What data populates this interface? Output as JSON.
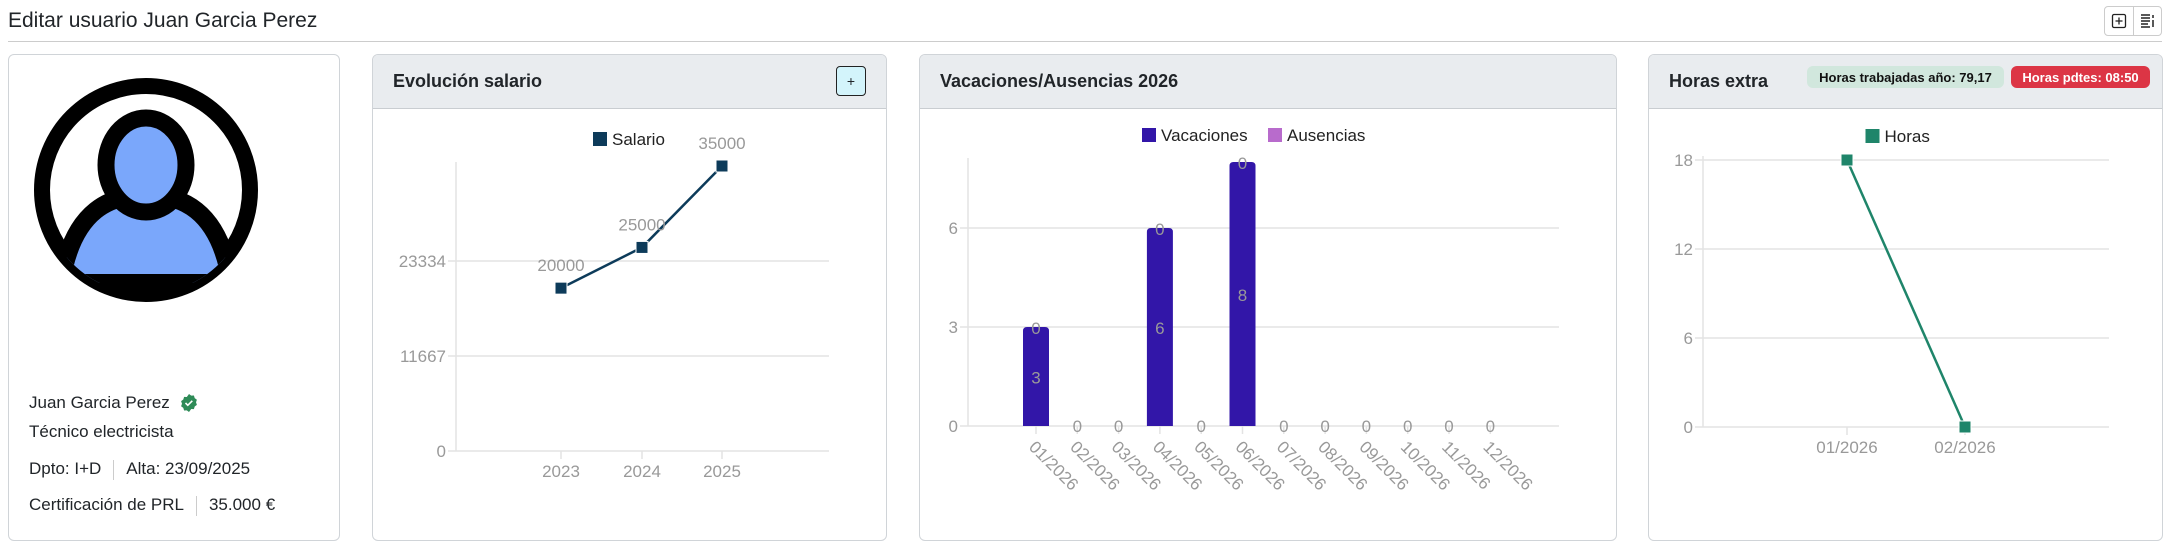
{
  "header": {
    "title": "Editar usuario Juan Garcia Perez",
    "toolbar": [
      {
        "icon": "plus-square-icon"
      },
      {
        "icon": "list-detail-icon"
      }
    ]
  },
  "profile": {
    "name": "Juan Garcia Perez",
    "verified_icon": "verified-check-icon",
    "job_title": "Técnico electricista",
    "department": "Dpto: I+D",
    "hire_date": "Alta: 23/09/2025",
    "certification": "Certificación de PRL",
    "salary": "35.000 €",
    "avatar_colors": {
      "fill": "#7aa7fb",
      "stroke": "#000000"
    }
  },
  "salary_card": {
    "title": "Evolución salario",
    "add_label": "+"
  },
  "vacation_card": {
    "title": "Vacaciones/Ausencias 2026"
  },
  "overtime_card": {
    "title": "Horas extra",
    "badge_worked": "Horas trabajadas año: 79,17",
    "badge_pending": "Horas pdtes: 08:50",
    "badge_worked_color": "#d1e7dd",
    "badge_pending_color": "#dc3545"
  },
  "chart_data": [
    {
      "type": "line",
      "title": "Evolución salario",
      "categories": [
        "2023",
        "2024",
        "2025"
      ],
      "series": [
        {
          "name": "Salario",
          "values": [
            20000,
            25000,
            35000
          ],
          "color": "#0d3b5a"
        }
      ],
      "yticks": [
        0,
        11667,
        23334
      ],
      "ylim": [
        0,
        35000
      ],
      "legend": "top",
      "grid": true
    },
    {
      "type": "bar",
      "title": "Vacaciones/Ausencias 2026",
      "categories": [
        "01/2026",
        "02/2026",
        "03/2026",
        "04/2026",
        "05/2026",
        "06/2026",
        "07/2026",
        "08/2026",
        "09/2026",
        "10/2026",
        "11/2026",
        "12/2026"
      ],
      "series": [
        {
          "name": "Vacaciones",
          "values": [
            3,
            0,
            0,
            6,
            0,
            8,
            0,
            0,
            0,
            0,
            0,
            0
          ],
          "color": "#3216a8"
        },
        {
          "name": "Ausencias",
          "values": [
            0,
            0,
            0,
            0,
            0,
            0,
            0,
            0,
            0,
            0,
            0,
            0
          ],
          "color": "#b86bcc"
        }
      ],
      "stacked": true,
      "yticks": [
        0,
        3,
        6
      ],
      "ylim": [
        0,
        8
      ],
      "legend": "top",
      "grid": true
    },
    {
      "type": "line",
      "title": "Horas extra",
      "categories": [
        "01/2026",
        "02/2026"
      ],
      "series": [
        {
          "name": "Horas",
          "values": [
            18,
            0
          ],
          "color": "#1f856a"
        }
      ],
      "yticks": [
        0,
        6,
        12,
        18
      ],
      "ylim": [
        0,
        18
      ],
      "legend": "top",
      "grid": true
    }
  ]
}
